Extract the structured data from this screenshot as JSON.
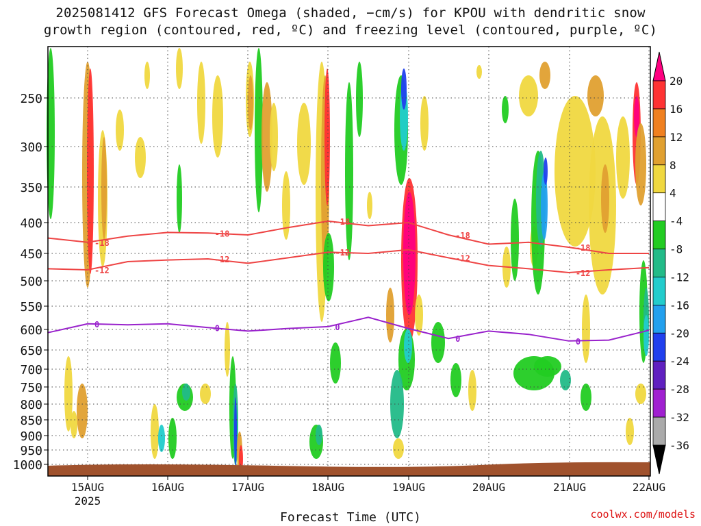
{
  "title_line1": "2025081412 GFS Forecast Omega (shaded, −cm/s) for KPOU with dendritic snow",
  "title_line2": "growth region (contoured, red, ºC) and freezing level (contoured, purple, ºC)",
  "credit": "coolwx.com/models",
  "chart_data": {
    "type": "heatmap",
    "xlabel": "Forecast Time (UTC)",
    "ylabel": "",
    "x_ticks": [
      "15AUG",
      "16AUG",
      "17AUG",
      "18AUG",
      "19AUG",
      "20AUG",
      "21AUG",
      "22AUG"
    ],
    "x_sublabel": "2025",
    "y_ticks": [
      250,
      300,
      350,
      400,
      450,
      500,
      550,
      600,
      650,
      700,
      750,
      800,
      850,
      900,
      950,
      1000
    ],
    "y_axis": "pressure (hPa), inverted, log-like",
    "colorbar": {
      "labels": [
        20,
        16,
        12,
        8,
        4,
        -4,
        -8,
        -12,
        -16,
        -20,
        -24,
        -28,
        -32,
        -36
      ],
      "colors": [
        "#ff0080",
        "#ff3333",
        "#f08020",
        "#e0a030",
        "#f0d840",
        "#ffffff",
        "#22cc22",
        "#22bb88",
        "#22cccc",
        "#22a0ee",
        "#2040ee",
        "#6020c0",
        "#a020d0",
        "#aaaaaa",
        "#000000"
      ]
    },
    "contours": [
      {
        "level": -18,
        "color": "#ee4444",
        "label": "-18",
        "pressure_by_day": [
          [
            14.5,
            425
          ],
          [
            15.0,
            432
          ],
          [
            15.5,
            422
          ],
          [
            16.0,
            416
          ],
          [
            16.5,
            417
          ],
          [
            17.0,
            420
          ],
          [
            17.5,
            408
          ],
          [
            18.0,
            398
          ],
          [
            18.5,
            405
          ],
          [
            19.0,
            400
          ],
          [
            19.5,
            420
          ],
          [
            20.0,
            435
          ],
          [
            20.5,
            432
          ],
          [
            21.0,
            440
          ],
          [
            21.5,
            450
          ],
          [
            22.0,
            450
          ]
        ]
      },
      {
        "level": -12,
        "color": "#ee4444",
        "label": "-12",
        "pressure_by_day": [
          [
            14.5,
            478
          ],
          [
            15.0,
            480
          ],
          [
            15.5,
            465
          ],
          [
            16.0,
            462
          ],
          [
            16.5,
            460
          ],
          [
            17.0,
            468
          ],
          [
            17.5,
            458
          ],
          [
            18.0,
            448
          ],
          [
            18.5,
            450
          ],
          [
            19.0,
            444
          ],
          [
            19.5,
            458
          ],
          [
            20.0,
            472
          ],
          [
            20.5,
            478
          ],
          [
            21.0,
            485
          ],
          [
            21.5,
            480
          ],
          [
            22.0,
            476
          ]
        ]
      },
      {
        "level": 0,
        "color": "#9922cc",
        "label": "0",
        "pressure_by_day": [
          [
            14.5,
            608
          ],
          [
            15.0,
            588
          ],
          [
            15.5,
            590
          ],
          [
            16.0,
            588
          ],
          [
            16.5,
            596
          ],
          [
            17.0,
            604
          ],
          [
            17.5,
            598
          ],
          [
            18.0,
            594
          ],
          [
            18.5,
            574
          ],
          [
            19.0,
            598
          ],
          [
            19.5,
            622
          ],
          [
            20.0,
            604
          ],
          [
            20.5,
            612
          ],
          [
            21.0,
            628
          ],
          [
            21.5,
            626
          ],
          [
            22.0,
            602
          ]
        ]
      }
    ],
    "soil_band_color": "#a0522d"
  }
}
